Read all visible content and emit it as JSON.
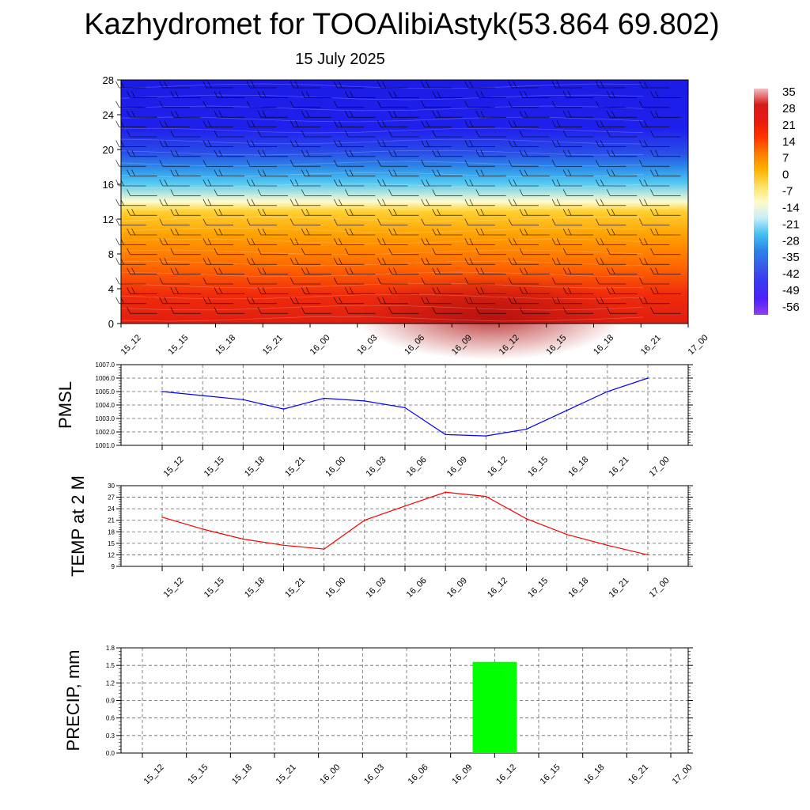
{
  "title": "Kazhydromet for TOOAlibiAstyk(53.864 69.802)",
  "date": "15 July 2025",
  "colors": {
    "pmsl_line": "#0000ff",
    "temp_line": "#ff0000",
    "precip_bar": "#00ff00",
    "wind_barb": "#000000"
  },
  "colorbar": {
    "labels": [
      "35",
      "28",
      "21",
      "14",
      "7",
      "0",
      "-7",
      "-14",
      "-21",
      "-28",
      "-35",
      "-42",
      "-49",
      "-56"
    ],
    "stops": [
      "#f2bfc6",
      "#d61a1a",
      "#e8190f",
      "#ff3300",
      "#ff7a00",
      "#ffb000",
      "#ffe060",
      "#fffbc8",
      "#c8eef8",
      "#46c0f0",
      "#2a86e8",
      "#3a5ae8",
      "#3838f0",
      "#5020f8",
      "#9040f0"
    ]
  },
  "chart_data": [
    {
      "type": "heatmap",
      "name": "temperature-height-section",
      "x": [
        "15_12",
        "15_15",
        "15_18",
        "15_21",
        "16_00",
        "16_03",
        "16_06",
        "16_09",
        "16_12",
        "16_15",
        "16_18",
        "16_21",
        "17_00"
      ],
      "ylim": [
        0,
        28
      ],
      "yticks": [
        "0",
        "4",
        "8",
        "12",
        "16",
        "20",
        "24",
        "28"
      ],
      "value_range": [
        -56,
        35
      ],
      "description_levels": "warm (red) near surface, freezing level near 12, cold (blue) above 16",
      "wind_barbs": true
    },
    {
      "type": "line",
      "ylabel": "PMSL",
      "x": [
        "15_12",
        "15_15",
        "15_18",
        "15_21",
        "16_00",
        "16_03",
        "16_06",
        "16_09",
        "16_12",
        "16_15",
        "16_18",
        "16_21",
        "17_00"
      ],
      "series": [
        {
          "values": [
            1005.0,
            1004.7,
            1004.4,
            1003.7,
            1004.5,
            1004.3,
            1003.8,
            1001.8,
            1001.7,
            1002.2,
            1003.6,
            1005.0,
            1006.0
          ]
        }
      ],
      "ylim": [
        1001.0,
        1007.0
      ],
      "yticks": [
        "1001.0",
        "1002.0",
        "1003.0",
        "1004.0",
        "1005.0",
        "1006.0",
        "1007.0"
      ],
      "grid": true
    },
    {
      "type": "line",
      "ylabel": "TEMP at 2 M",
      "x": [
        "15_12",
        "15_15",
        "15_18",
        "15_21",
        "16_00",
        "16_03",
        "16_06",
        "16_09",
        "16_12",
        "16_15",
        "16_18",
        "16_21",
        "17_00"
      ],
      "series": [
        {
          "values": [
            21.8,
            18.7,
            16.1,
            14.5,
            13.5,
            21.0,
            24.7,
            28.3,
            27.2,
            21.4,
            17.3,
            14.5,
            12.0
          ]
        }
      ],
      "ylim": [
        9,
        30
      ],
      "yticks": [
        "9",
        "12",
        "15",
        "18",
        "21",
        "24",
        "27",
        "30"
      ],
      "grid": true
    },
    {
      "type": "bar",
      "ylabel": "PRECIP, mm",
      "categories": [
        "15_12",
        "15_15",
        "15_18",
        "15_21",
        "16_00",
        "16_03",
        "16_06",
        "16_09",
        "16_12",
        "16_15",
        "16_18",
        "16_21",
        "17_00"
      ],
      "values": [
        0,
        0,
        0,
        0,
        0,
        0,
        0,
        0,
        1.56,
        0,
        0,
        0,
        0
      ],
      "ylim": [
        0.0,
        1.8
      ],
      "yticks": [
        "0.0",
        "0.3",
        "0.6",
        "0.9",
        "1.2",
        "1.5",
        "1.8"
      ],
      "grid": true
    }
  ]
}
